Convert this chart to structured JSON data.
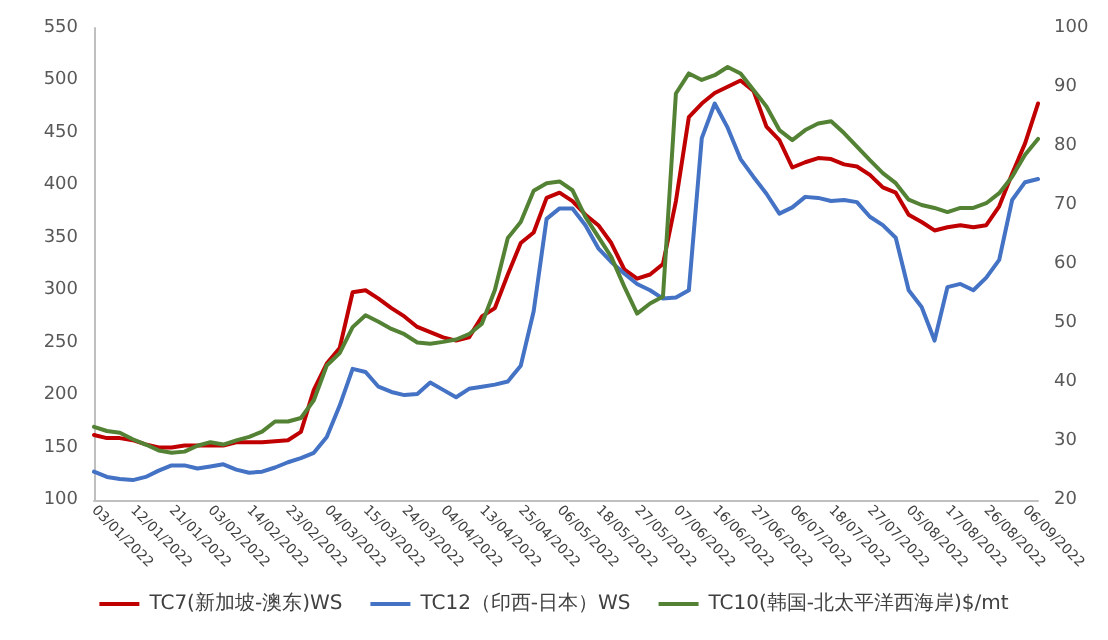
{
  "chart_data": {
    "type": "line",
    "categories": [
      "03/01/2022",
      null,
      null,
      "12/01/2022",
      null,
      null,
      "21/01/2022",
      null,
      null,
      "03/02/2022",
      null,
      null,
      "14/02/2022",
      null,
      null,
      "23/02/2022",
      null,
      null,
      "04/03/2022",
      null,
      null,
      "15/03/2022",
      null,
      null,
      "24/03/2022",
      null,
      null,
      "04/04/2022",
      null,
      null,
      "13/04/2022",
      null,
      null,
      "25/04/2022",
      null,
      null,
      "06/05/2022",
      null,
      null,
      "18/05/2022",
      null,
      null,
      "27/05/2022",
      null,
      null,
      "07/06/2022",
      null,
      null,
      "16/06/2022",
      null,
      null,
      "27/06/2022",
      null,
      null,
      "06/07/2022",
      null,
      null,
      "18/07/2022",
      null,
      null,
      "27/07/2022",
      null,
      null,
      "05/08/2022",
      null,
      null,
      "17/08/2022",
      null,
      null,
      "26/08/2022",
      null,
      null,
      "06/09/2022",
      null
    ],
    "series": [
      {
        "name": "TC7(新加坡-澳东)WS",
        "color": "#c00000",
        "values": [
          162,
          159,
          159,
          157,
          153,
          150,
          150,
          152,
          152,
          152,
          152,
          155,
          155,
          155,
          156,
          157,
          165,
          205,
          230,
          245,
          298,
          300,
          292,
          283,
          275,
          265,
          260,
          255,
          252,
          255,
          275,
          283,
          315,
          345,
          355,
          388,
          393,
          385,
          372,
          362,
          345,
          320,
          311,
          315,
          325,
          385,
          465,
          478,
          488,
          494,
          500,
          490,
          456,
          443,
          417,
          422,
          426,
          425,
          420,
          418,
          410,
          398,
          393,
          372,
          365,
          357,
          360,
          362,
          360,
          362,
          380,
          411,
          440,
          478
        ]
      },
      {
        "name": "TC12（印西-日本）WS",
        "color": "#4472c4",
        "values": [
          127,
          122,
          120,
          119,
          122,
          128,
          133,
          133,
          130,
          132,
          134,
          129,
          126,
          127,
          131,
          136,
          140,
          145,
          160,
          190,
          225,
          222,
          208,
          203,
          200,
          201,
          212,
          205,
          198,
          206,
          208,
          210,
          213,
          228,
          280,
          368,
          378,
          378,
          362,
          340,
          327,
          316,
          306,
          300,
          292,
          293,
          300,
          445,
          478,
          455,
          425,
          408,
          392,
          373,
          379,
          389,
          388,
          385,
          386,
          384,
          370,
          362,
          350,
          300,
          284,
          252,
          303,
          306,
          300,
          312,
          329,
          386,
          403,
          406
        ]
      },
      {
        "name": "TC10(韩国-北太平洋西海岸)$/mt",
        "color": "#548235",
        "axis": "y2",
        "values": [
          32.4,
          31.7,
          31.4,
          30.3,
          29.4,
          28.4,
          28.0,
          28.2,
          29.2,
          29.8,
          29.4,
          30.1,
          30.7,
          31.6,
          33.3,
          33.3,
          33.9,
          36.9,
          42.8,
          44.9,
          49.3,
          51.3,
          50.2,
          49.0,
          48.1,
          46.7,
          46.5,
          46.8,
          47.2,
          48.1,
          49.9,
          55.6,
          64.4,
          67.1,
          72.4,
          73.7,
          74.0,
          72.5,
          68.0,
          64.6,
          61.2,
          56.2,
          51.6,
          53.3,
          54.5,
          88.9,
          92.3,
          91.2,
          92.0,
          93.4,
          92.3,
          89.5,
          86.7,
          82.7,
          81.0,
          82.7,
          83.8,
          84.2,
          82.2,
          79.9,
          77.6,
          75.4,
          73.7,
          70.9,
          70.0,
          69.5,
          68.8,
          69.5,
          69.5,
          70.3,
          72.0,
          74.8,
          78.5,
          81.2
        ]
      }
    ],
    "ylim": [
      100,
      550
    ],
    "yticks": [
      100,
      150,
      200,
      250,
      300,
      350,
      400,
      450,
      500,
      550
    ],
    "y2lim": [
      20,
      100
    ],
    "y2ticks": [
      20,
      30,
      40,
      50,
      60,
      70,
      80,
      90,
      100
    ],
    "grid": false,
    "legend": "bottom",
    "marker": "none",
    "line_style": "solid"
  }
}
